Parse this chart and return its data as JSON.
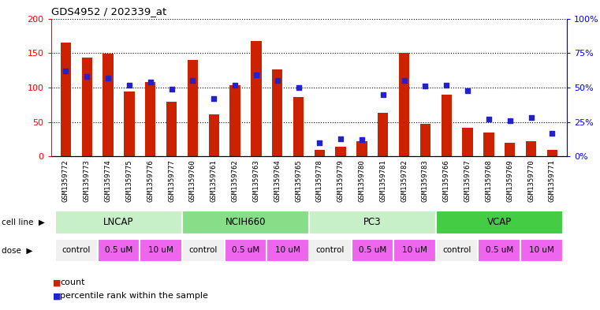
{
  "title": "GDS4952 / 202339_at",
  "samples": [
    "GSM1359772",
    "GSM1359773",
    "GSM1359774",
    "GSM1359775",
    "GSM1359776",
    "GSM1359777",
    "GSM1359760",
    "GSM1359761",
    "GSM1359762",
    "GSM1359763",
    "GSM1359764",
    "GSM1359765",
    "GSM1359778",
    "GSM1359779",
    "GSM1359780",
    "GSM1359781",
    "GSM1359782",
    "GSM1359783",
    "GSM1359766",
    "GSM1359767",
    "GSM1359768",
    "GSM1359769",
    "GSM1359770",
    "GSM1359771"
  ],
  "counts": [
    165,
    144,
    149,
    94,
    108,
    79,
    140,
    61,
    103,
    168,
    126,
    86,
    10,
    14,
    22,
    64,
    150,
    47,
    90,
    42,
    35,
    20,
    22,
    10
  ],
  "percentiles": [
    62,
    58,
    57,
    52,
    54,
    49,
    55,
    42,
    52,
    59,
    55,
    50,
    10,
    13,
    12,
    45,
    55,
    51,
    52,
    48,
    27,
    26,
    28,
    17
  ],
  "cell_lines": [
    {
      "label": "LNCAP",
      "start": 0,
      "end": 6
    },
    {
      "label": "NCIH660",
      "start": 6,
      "end": 12
    },
    {
      "label": "PC3",
      "start": 12,
      "end": 18
    },
    {
      "label": "VCAP",
      "start": 18,
      "end": 24
    }
  ],
  "cell_line_colors": {
    "LNCAP": "#c8f0c8",
    "NCIH660": "#88dd88",
    "PC3": "#c8f0c8",
    "VCAP": "#44cc44"
  },
  "dose_groups": [
    {
      "label": "control",
      "start": 0,
      "end": 2
    },
    {
      "label": "0.5 uM",
      "start": 2,
      "end": 4
    },
    {
      "label": "10 uM",
      "start": 4,
      "end": 6
    },
    {
      "label": "control",
      "start": 6,
      "end": 8
    },
    {
      "label": "0.5 uM",
      "start": 8,
      "end": 10
    },
    {
      "label": "10 uM",
      "start": 10,
      "end": 12
    },
    {
      "label": "control",
      "start": 12,
      "end": 14
    },
    {
      "label": "0.5 uM",
      "start": 14,
      "end": 16
    },
    {
      "label": "10 uM",
      "start": 16,
      "end": 18
    },
    {
      "label": "control",
      "start": 18,
      "end": 20
    },
    {
      "label": "0.5 uM",
      "start": 20,
      "end": 22
    },
    {
      "label": "10 uM",
      "start": 22,
      "end": 24
    }
  ],
  "dose_colors": {
    "control": "#f0f0f0",
    "0.5 uM": "#ee66ee",
    "10 uM": "#ee66ee"
  },
  "bar_color": "#cc2200",
  "dot_color": "#2222cc",
  "ylim_left": [
    0,
    200
  ],
  "ylim_right": [
    0,
    100
  ],
  "yticks_left": [
    0,
    50,
    100,
    150,
    200
  ],
  "yticks_right": [
    0,
    25,
    50,
    75,
    100
  ],
  "ytick_labels_left": [
    "0",
    "50",
    "100",
    "150",
    "200"
  ],
  "ytick_labels_right": [
    "0%",
    "25%",
    "50%",
    "75%",
    "100%"
  ],
  "legend_count": "count",
  "legend_percentile": "percentile rank within the sample",
  "bar_width": 0.5,
  "xtick_bg": "#d8d8d8"
}
